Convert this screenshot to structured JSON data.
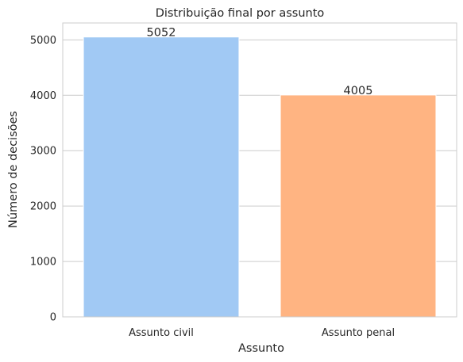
{
  "chart_data": {
    "type": "bar",
    "title": "Distribuição final por assunto",
    "xlabel": "Assunto",
    "ylabel": "Número de decisões",
    "categories": [
      "Assunto civil",
      "Assunto penal"
    ],
    "values": [
      5052,
      4005
    ],
    "data_labels": [
      "5052",
      "4005"
    ],
    "ylim": [
      0,
      5305
    ],
    "yticks": [
      0,
      1000,
      2000,
      3000,
      4000,
      5000
    ],
    "ytick_labels": [
      "0",
      "1000",
      "2000",
      "3000",
      "4000",
      "5000"
    ],
    "colors": [
      "#a1c9f4",
      "#ffb482"
    ],
    "grid": true,
    "legend": "none"
  }
}
